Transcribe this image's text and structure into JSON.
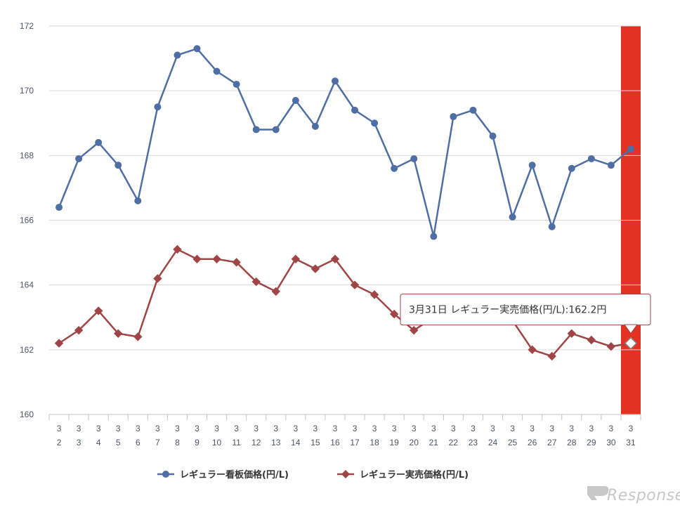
{
  "chart_data": {
    "type": "line",
    "x_month": [
      "3",
      "3",
      "3",
      "3",
      "3",
      "3",
      "3",
      "3",
      "3",
      "3",
      "3",
      "3",
      "3",
      "3",
      "3",
      "3",
      "3",
      "3",
      "3",
      "3",
      "3",
      "3",
      "3",
      "3",
      "3",
      "3",
      "3",
      "3",
      "3",
      "3"
    ],
    "x_day": [
      "2",
      "3",
      "4",
      "5",
      "6",
      "7",
      "8",
      "9",
      "10",
      "11",
      "12",
      "13",
      "14",
      "15",
      "16",
      "17",
      "18",
      "19",
      "20",
      "21",
      "22",
      "23",
      "24",
      "25",
      "26",
      "27",
      "28",
      "29",
      "30",
      "31"
    ],
    "ylim": [
      160,
      172
    ],
    "yticks": [
      "160",
      "162",
      "164",
      "166",
      "168",
      "170",
      "172"
    ],
    "grid": true,
    "legend_position": "bottom-center",
    "highlight_index": 29,
    "series": [
      {
        "name": "レギュラー看板価格(円/L)",
        "color": "#4f6ea4",
        "marker": "circle",
        "values": [
          166.4,
          167.9,
          168.4,
          167.7,
          166.6,
          169.5,
          171.1,
          171.3,
          170.6,
          170.2,
          168.8,
          168.8,
          169.7,
          168.9,
          170.3,
          169.4,
          169.0,
          167.6,
          167.9,
          165.5,
          169.2,
          169.4,
          168.6,
          166.1,
          167.7,
          165.8,
          167.6,
          167.9,
          167.7,
          168.2
        ]
      },
      {
        "name": "レギュラー実売価格(円/L)",
        "color": "#a04545",
        "marker": "diamond",
        "values": [
          162.2,
          162.6,
          163.2,
          162.5,
          162.4,
          164.2,
          165.1,
          164.8,
          164.8,
          164.7,
          164.1,
          163.8,
          164.8,
          164.5,
          164.8,
          164.0,
          163.7,
          163.1,
          162.6,
          163.0,
          163.5,
          163.3,
          163.3,
          162.9,
          162.0,
          161.8,
          162.5,
          162.3,
          162.1,
          162.2
        ]
      }
    ],
    "tooltip": "3月31日 レギュラー実売価格(円/L):162.2円"
  },
  "colors": {
    "highlight": "#e23322",
    "grid": "#d9d9d9",
    "axis": "#c0c4cc"
  },
  "watermark": "Response."
}
